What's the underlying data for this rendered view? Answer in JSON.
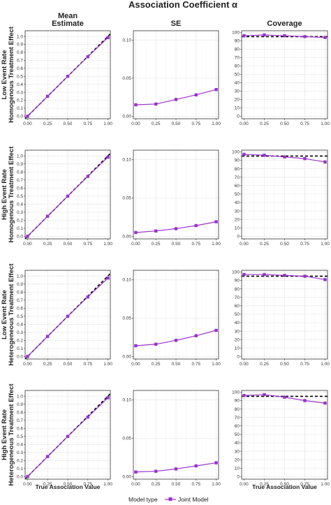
{
  "figure": {
    "title": "Association Coefficient α",
    "columns": [
      "Mean\nEstimate",
      "SE",
      "Coverage"
    ],
    "rows": [
      [
        "Low Event Rate",
        "Homogenous Treatment Effect"
      ],
      [
        "High Event Rate",
        "Homogenous Treatment Effect"
      ],
      [
        "Low Event Rate",
        "Heterogeneous Treatment Effect"
      ],
      [
        "High Event Rate",
        "Heterogeneous Treatment Effect"
      ]
    ],
    "xlabel": "True Association Value",
    "legend": {
      "title": "Model type",
      "entry": "Joint Model"
    }
  },
  "colors": {
    "series": "#9932CC",
    "reference": "#000000",
    "grid": "#ebebeb",
    "panel_border": "#333333"
  },
  "chart_data": {
    "type": "line",
    "layout": "facet-grid 4 rows x 3 columns",
    "x": [
      0.0,
      0.25,
      0.5,
      0.75,
      1.0
    ],
    "x_ticks": [
      "0.00",
      "0.25",
      "0.50",
      "0.75",
      "1.00"
    ],
    "series_name": "Joint Model",
    "grid": true,
    "legend_position": "bottom",
    "axes": {
      "mean": {
        "ylim": [
          0,
          1.05
        ],
        "yticks": [
          "0.0",
          "0.1",
          "0.2",
          "0.3",
          "0.4",
          "0.5",
          "0.6",
          "0.7",
          "0.8",
          "0.9",
          "1.0"
        ],
        "yvals": [
          0,
          0.1,
          0.2,
          0.3,
          0.4,
          0.5,
          0.6,
          0.7,
          0.8,
          0.9,
          1.0
        ],
        "reference": "y=x dashed"
      },
      "se": {
        "ylim": [
          0,
          0.11
        ],
        "yticks": [
          "0.00",
          "0.05",
          "0.10"
        ],
        "yvals": [
          0,
          0.05,
          0.1
        ]
      },
      "coverage": {
        "ylim": [
          0,
          100
        ],
        "yticks": [
          "0",
          "10",
          "20",
          "30",
          "40",
          "50",
          "60",
          "70",
          "80",
          "90",
          "100"
        ],
        "yvals": [
          0,
          10,
          20,
          30,
          40,
          50,
          60,
          70,
          80,
          90,
          100
        ],
        "reference": "y=95 dashed"
      }
    },
    "panels": [
      {
        "row": 0,
        "mean": [
          0.0,
          0.25,
          0.5,
          0.745,
          0.985
        ],
        "se": [
          0.015,
          0.016,
          0.022,
          0.028,
          0.035
        ],
        "coverage": [
          96,
          97,
          96,
          95,
          94
        ]
      },
      {
        "row": 1,
        "mean": [
          0.0,
          0.25,
          0.5,
          0.745,
          0.985
        ],
        "se": [
          0.005,
          0.007,
          0.01,
          0.014,
          0.019
        ],
        "coverage": [
          97,
          96,
          94,
          92,
          88
        ]
      },
      {
        "row": 2,
        "mean": [
          0.0,
          0.25,
          0.5,
          0.74,
          0.975
        ],
        "se": [
          0.014,
          0.016,
          0.021,
          0.027,
          0.034
        ],
        "coverage": [
          97,
          97,
          96,
          95,
          91
        ]
      },
      {
        "row": 3,
        "mean": [
          0.0,
          0.25,
          0.5,
          0.74,
          0.98
        ],
        "se": [
          0.006,
          0.007,
          0.01,
          0.014,
          0.018
        ],
        "coverage": [
          96,
          97,
          94,
          90,
          87
        ]
      }
    ]
  }
}
